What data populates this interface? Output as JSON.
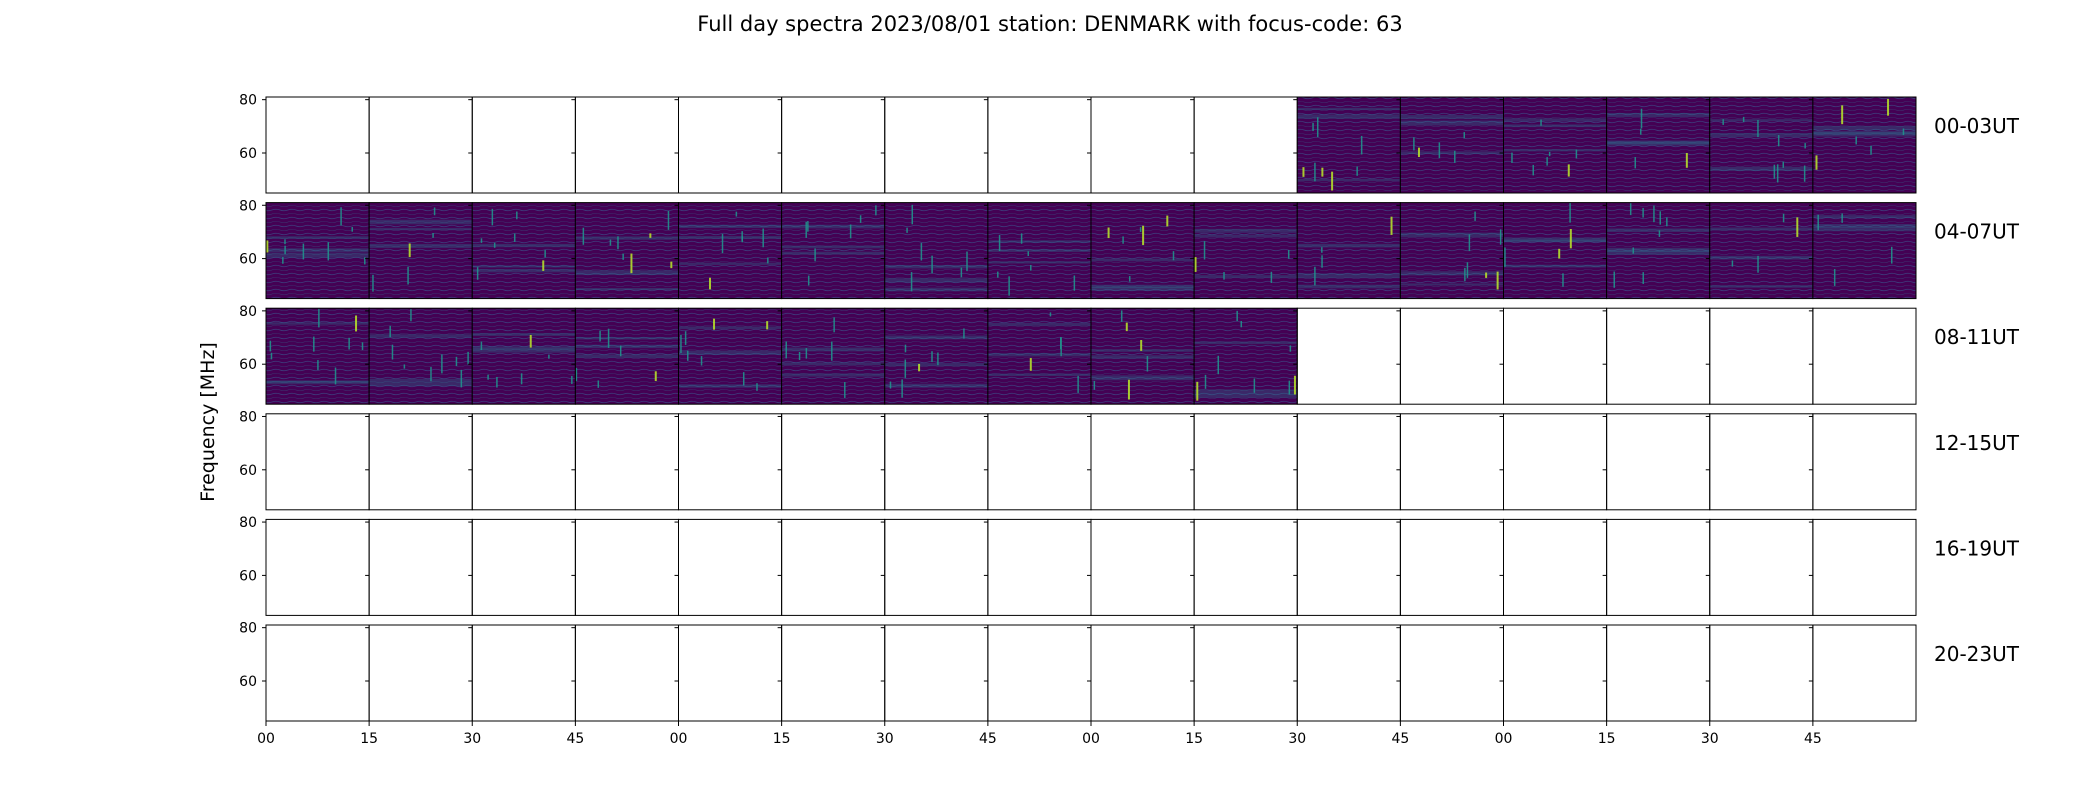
{
  "chart_data": {
    "type": "heatmap",
    "title": "Full day spectra 2023/08/01 station: DENMARK with focus-code: 63",
    "ylabel": "Frequency [MHz]",
    "xlabel": "",
    "yticks": [
      "60",
      "80"
    ],
    "ylim": [
      45,
      81
    ],
    "xticks": [
      "00",
      "15",
      "30",
      "45",
      "00",
      "15",
      "30",
      "45",
      "00",
      "15",
      "30",
      "45",
      "00",
      "15",
      "30",
      "45"
    ],
    "colormap": "viridis",
    "background_color": "#440154",
    "rows": [
      {
        "label": "00-03UT",
        "has_data": [
          false,
          false,
          false,
          false,
          false,
          false,
          false,
          false,
          false,
          false,
          true,
          true,
          true,
          true,
          true,
          true
        ]
      },
      {
        "label": "04-07UT",
        "has_data": [
          true,
          true,
          true,
          true,
          true,
          true,
          true,
          true,
          true,
          true,
          true,
          true,
          true,
          true,
          true,
          true
        ]
      },
      {
        "label": "08-11UT",
        "has_data": [
          true,
          true,
          true,
          true,
          true,
          true,
          true,
          true,
          true,
          true,
          false,
          false,
          false,
          false,
          false,
          false
        ]
      },
      {
        "label": "12-15UT",
        "has_data": [
          false,
          false,
          false,
          false,
          false,
          false,
          false,
          false,
          false,
          false,
          false,
          false,
          false,
          false,
          false,
          false
        ]
      },
      {
        "label": "16-19UT",
        "has_data": [
          false,
          false,
          false,
          false,
          false,
          false,
          false,
          false,
          false,
          false,
          false,
          false,
          false,
          false,
          false,
          false
        ]
      },
      {
        "label": "20-23UT",
        "has_data": [
          false,
          false,
          false,
          false,
          false,
          false,
          false,
          false,
          false,
          false,
          false,
          false,
          false,
          false,
          false,
          false
        ]
      }
    ]
  }
}
